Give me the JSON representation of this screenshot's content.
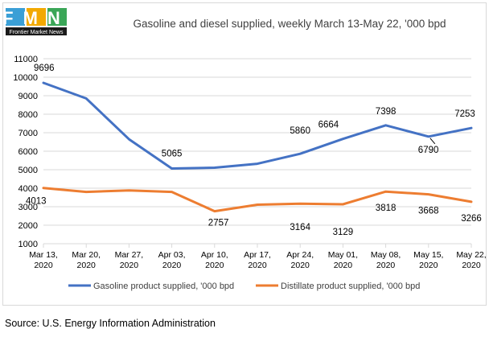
{
  "logo": {
    "letters": "FMN",
    "subtitle": "Frontier Market News",
    "colors": [
      "#3a9fd6",
      "#f2a900",
      "#3aa657"
    ]
  },
  "chart_data": {
    "type": "line",
    "title": "Gasoline and diesel supplied, weekly March 13-May 22, '000 bpd",
    "xlabel": "",
    "ylabel": "",
    "ylim": [
      1000,
      11000
    ],
    "yticks": [
      "1000",
      "2000",
      "3000",
      "4000",
      "5000",
      "6000",
      "7000",
      "8000",
      "9000",
      "10000",
      "11000"
    ],
    "categories": [
      [
        "Mar 13,",
        "2020"
      ],
      [
        "Mar 20,",
        "2020"
      ],
      [
        "Mar 27,",
        "2020"
      ],
      [
        "Apr 03,",
        "2020"
      ],
      [
        "Apr 10,",
        "2020"
      ],
      [
        "Apr 17,",
        "2020"
      ],
      [
        "Apr 24,",
        "2020"
      ],
      [
        "May 01,",
        "2020"
      ],
      [
        "May 08,",
        "2020"
      ],
      [
        "May 15,",
        "2020"
      ],
      [
        "May 22,",
        "2020"
      ]
    ],
    "grid": true,
    "legend_position": "bottom",
    "series": [
      {
        "name": "Gasoline product supplied, '000 bpd",
        "color": "#4472c4",
        "values": [
          9696,
          8850,
          6650,
          5065,
          5110,
          5320,
          5860,
          6664,
          7398,
          6790,
          7253
        ],
        "labels": [
          "9696",
          null,
          null,
          "5065",
          null,
          null,
          "5860",
          "6664",
          "7398",
          "6790",
          "7253"
        ]
      },
      {
        "name": "Distillate product supplied, '000 bpd",
        "color": "#ed7d31",
        "values": [
          4013,
          3800,
          3880,
          3800,
          2757,
          3110,
          3164,
          3129,
          3818,
          3668,
          3266
        ],
        "labels": [
          "4013",
          null,
          null,
          null,
          "2757",
          null,
          "3164",
          "3129",
          "3818",
          "3668",
          "3266"
        ]
      }
    ]
  },
  "source": "Source: U.S. Energy Information Administration"
}
